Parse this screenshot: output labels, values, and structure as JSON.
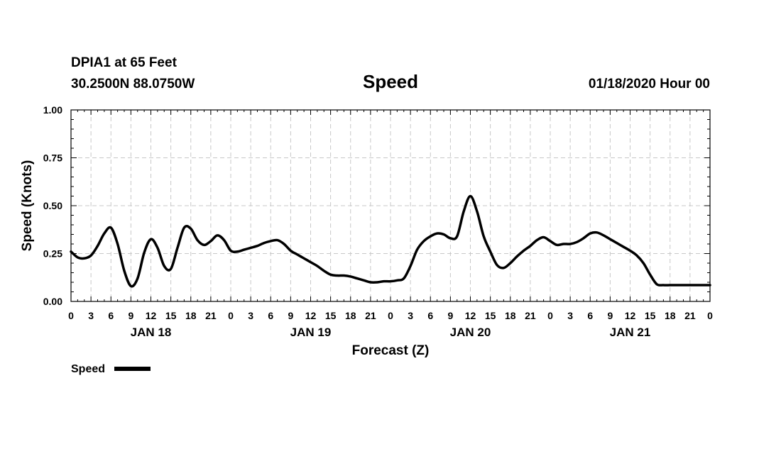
{
  "header": {
    "station": "DPIA1 at 65 Feet",
    "coords": "30.2500N 88.0750W",
    "title": "Speed",
    "run": "01/18/2020 Hour 00"
  },
  "chart_data": {
    "type": "line",
    "title": "Speed",
    "xlabel": "Forecast (Z)",
    "ylabel": "Speed (Knots)",
    "xlim": [
      0,
      96
    ],
    "ylim": [
      0,
      1
    ],
    "yticks": [
      "0.00",
      "0.25",
      "0.50",
      "0.75",
      "1.00"
    ],
    "xticks": [
      "0",
      "3",
      "6",
      "9",
      "12",
      "15",
      "18",
      "21",
      "0",
      "3",
      "6",
      "9",
      "12",
      "15",
      "18",
      "21",
      "0",
      "3",
      "6",
      "9",
      "12",
      "15",
      "18",
      "21",
      "0",
      "3",
      "6",
      "9",
      "12",
      "15",
      "18",
      "21",
      "0"
    ],
    "day_labels": [
      {
        "label": "JAN 18",
        "hour": 12
      },
      {
        "label": "JAN 19",
        "hour": 36
      },
      {
        "label": "JAN 20",
        "hour": 60
      },
      {
        "label": "JAN 21",
        "hour": 84
      }
    ],
    "grid": true,
    "legend": "bottom-left",
    "series": [
      {
        "name": "Speed",
        "color": "#000000",
        "x": [
          0,
          1,
          2,
          3,
          4,
          5,
          6,
          7,
          8,
          9,
          10,
          11,
          12,
          13,
          14,
          15,
          16,
          17,
          18,
          19,
          20,
          21,
          22,
          23,
          24,
          25,
          26,
          27,
          28,
          29,
          30,
          31,
          32,
          33,
          34,
          35,
          36,
          37,
          38,
          39,
          40,
          41,
          42,
          43,
          44,
          45,
          46,
          47,
          48,
          49,
          50,
          51,
          52,
          53,
          54,
          55,
          56,
          57,
          58,
          59,
          60,
          61,
          62,
          63,
          64,
          65,
          66,
          67,
          68,
          69,
          70,
          71,
          72,
          73,
          74,
          75,
          76,
          77,
          78,
          79,
          80,
          81,
          82,
          83,
          84,
          85,
          86,
          87,
          88,
          89,
          90,
          91,
          92,
          93,
          94,
          95,
          96
        ],
        "values": [
          0.26,
          0.23,
          0.225,
          0.24,
          0.29,
          0.355,
          0.385,
          0.3,
          0.16,
          0.08,
          0.12,
          0.255,
          0.325,
          0.28,
          0.185,
          0.17,
          0.28,
          0.385,
          0.38,
          0.32,
          0.295,
          0.315,
          0.345,
          0.32,
          0.265,
          0.26,
          0.27,
          0.28,
          0.29,
          0.305,
          0.315,
          0.32,
          0.3,
          0.265,
          0.245,
          0.225,
          0.205,
          0.185,
          0.16,
          0.14,
          0.135,
          0.135,
          0.13,
          0.12,
          0.11,
          0.1,
          0.1,
          0.105,
          0.105,
          0.11,
          0.12,
          0.185,
          0.27,
          0.315,
          0.34,
          0.355,
          0.35,
          0.33,
          0.34,
          0.47,
          0.55,
          0.47,
          0.34,
          0.26,
          0.19,
          0.175,
          0.2,
          0.235,
          0.265,
          0.29,
          0.32,
          0.335,
          0.315,
          0.295,
          0.3,
          0.3,
          0.31,
          0.33,
          0.355,
          0.36,
          0.345,
          0.325,
          0.305,
          0.285,
          0.265,
          0.24,
          0.2,
          0.14,
          0.09,
          0.085,
          0.085,
          0.085,
          0.085,
          0.085,
          0.085,
          0.085,
          0.085
        ]
      }
    ]
  }
}
